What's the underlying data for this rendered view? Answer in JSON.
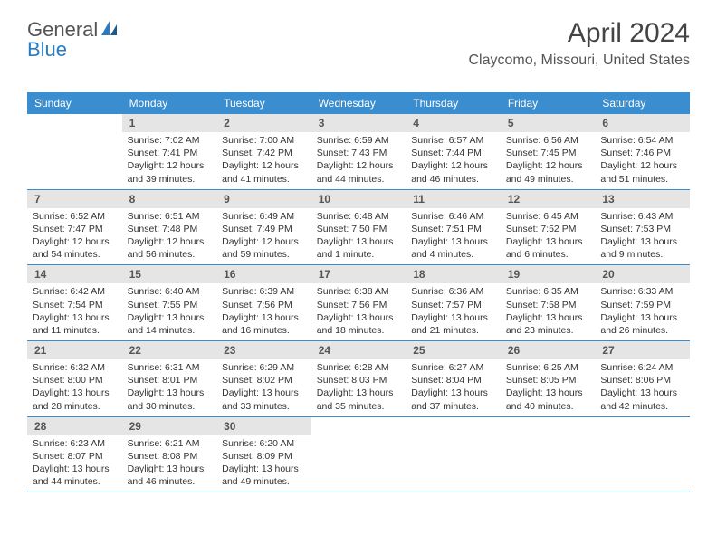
{
  "logo": {
    "text1": "General",
    "text2": "Blue"
  },
  "title": "April 2024",
  "location": "Claycomo, Missouri, United States",
  "dayHeaders": [
    "Sunday",
    "Monday",
    "Tuesday",
    "Wednesday",
    "Thursday",
    "Friday",
    "Saturday"
  ],
  "colors": {
    "headerBg": "#3a8dce",
    "headerText": "#ffffff",
    "dayNumBg": "#e5e5e5",
    "rowBorder": "#3a8dce",
    "logoBlue": "#2a7bbf"
  },
  "weeks": [
    [
      {
        "empty": true
      },
      {
        "num": "1",
        "sunrise": "Sunrise: 7:02 AM",
        "sunset": "Sunset: 7:41 PM",
        "daylight": "Daylight: 12 hours and 39 minutes."
      },
      {
        "num": "2",
        "sunrise": "Sunrise: 7:00 AM",
        "sunset": "Sunset: 7:42 PM",
        "daylight": "Daylight: 12 hours and 41 minutes."
      },
      {
        "num": "3",
        "sunrise": "Sunrise: 6:59 AM",
        "sunset": "Sunset: 7:43 PM",
        "daylight": "Daylight: 12 hours and 44 minutes."
      },
      {
        "num": "4",
        "sunrise": "Sunrise: 6:57 AM",
        "sunset": "Sunset: 7:44 PM",
        "daylight": "Daylight: 12 hours and 46 minutes."
      },
      {
        "num": "5",
        "sunrise": "Sunrise: 6:56 AM",
        "sunset": "Sunset: 7:45 PM",
        "daylight": "Daylight: 12 hours and 49 minutes."
      },
      {
        "num": "6",
        "sunrise": "Sunrise: 6:54 AM",
        "sunset": "Sunset: 7:46 PM",
        "daylight": "Daylight: 12 hours and 51 minutes."
      }
    ],
    [
      {
        "num": "7",
        "sunrise": "Sunrise: 6:52 AM",
        "sunset": "Sunset: 7:47 PM",
        "daylight": "Daylight: 12 hours and 54 minutes."
      },
      {
        "num": "8",
        "sunrise": "Sunrise: 6:51 AM",
        "sunset": "Sunset: 7:48 PM",
        "daylight": "Daylight: 12 hours and 56 minutes."
      },
      {
        "num": "9",
        "sunrise": "Sunrise: 6:49 AM",
        "sunset": "Sunset: 7:49 PM",
        "daylight": "Daylight: 12 hours and 59 minutes."
      },
      {
        "num": "10",
        "sunrise": "Sunrise: 6:48 AM",
        "sunset": "Sunset: 7:50 PM",
        "daylight": "Daylight: 13 hours and 1 minute."
      },
      {
        "num": "11",
        "sunrise": "Sunrise: 6:46 AM",
        "sunset": "Sunset: 7:51 PM",
        "daylight": "Daylight: 13 hours and 4 minutes."
      },
      {
        "num": "12",
        "sunrise": "Sunrise: 6:45 AM",
        "sunset": "Sunset: 7:52 PM",
        "daylight": "Daylight: 13 hours and 6 minutes."
      },
      {
        "num": "13",
        "sunrise": "Sunrise: 6:43 AM",
        "sunset": "Sunset: 7:53 PM",
        "daylight": "Daylight: 13 hours and 9 minutes."
      }
    ],
    [
      {
        "num": "14",
        "sunrise": "Sunrise: 6:42 AM",
        "sunset": "Sunset: 7:54 PM",
        "daylight": "Daylight: 13 hours and 11 minutes."
      },
      {
        "num": "15",
        "sunrise": "Sunrise: 6:40 AM",
        "sunset": "Sunset: 7:55 PM",
        "daylight": "Daylight: 13 hours and 14 minutes."
      },
      {
        "num": "16",
        "sunrise": "Sunrise: 6:39 AM",
        "sunset": "Sunset: 7:56 PM",
        "daylight": "Daylight: 13 hours and 16 minutes."
      },
      {
        "num": "17",
        "sunrise": "Sunrise: 6:38 AM",
        "sunset": "Sunset: 7:56 PM",
        "daylight": "Daylight: 13 hours and 18 minutes."
      },
      {
        "num": "18",
        "sunrise": "Sunrise: 6:36 AM",
        "sunset": "Sunset: 7:57 PM",
        "daylight": "Daylight: 13 hours and 21 minutes."
      },
      {
        "num": "19",
        "sunrise": "Sunrise: 6:35 AM",
        "sunset": "Sunset: 7:58 PM",
        "daylight": "Daylight: 13 hours and 23 minutes."
      },
      {
        "num": "20",
        "sunrise": "Sunrise: 6:33 AM",
        "sunset": "Sunset: 7:59 PM",
        "daylight": "Daylight: 13 hours and 26 minutes."
      }
    ],
    [
      {
        "num": "21",
        "sunrise": "Sunrise: 6:32 AM",
        "sunset": "Sunset: 8:00 PM",
        "daylight": "Daylight: 13 hours and 28 minutes."
      },
      {
        "num": "22",
        "sunrise": "Sunrise: 6:31 AM",
        "sunset": "Sunset: 8:01 PM",
        "daylight": "Daylight: 13 hours and 30 minutes."
      },
      {
        "num": "23",
        "sunrise": "Sunrise: 6:29 AM",
        "sunset": "Sunset: 8:02 PM",
        "daylight": "Daylight: 13 hours and 33 minutes."
      },
      {
        "num": "24",
        "sunrise": "Sunrise: 6:28 AM",
        "sunset": "Sunset: 8:03 PM",
        "daylight": "Daylight: 13 hours and 35 minutes."
      },
      {
        "num": "25",
        "sunrise": "Sunrise: 6:27 AM",
        "sunset": "Sunset: 8:04 PM",
        "daylight": "Daylight: 13 hours and 37 minutes."
      },
      {
        "num": "26",
        "sunrise": "Sunrise: 6:25 AM",
        "sunset": "Sunset: 8:05 PM",
        "daylight": "Daylight: 13 hours and 40 minutes."
      },
      {
        "num": "27",
        "sunrise": "Sunrise: 6:24 AM",
        "sunset": "Sunset: 8:06 PM",
        "daylight": "Daylight: 13 hours and 42 minutes."
      }
    ],
    [
      {
        "num": "28",
        "sunrise": "Sunrise: 6:23 AM",
        "sunset": "Sunset: 8:07 PM",
        "daylight": "Daylight: 13 hours and 44 minutes."
      },
      {
        "num": "29",
        "sunrise": "Sunrise: 6:21 AM",
        "sunset": "Sunset: 8:08 PM",
        "daylight": "Daylight: 13 hours and 46 minutes."
      },
      {
        "num": "30",
        "sunrise": "Sunrise: 6:20 AM",
        "sunset": "Sunset: 8:09 PM",
        "daylight": "Daylight: 13 hours and 49 minutes."
      },
      {
        "empty": true
      },
      {
        "empty": true
      },
      {
        "empty": true
      },
      {
        "empty": true
      }
    ]
  ]
}
